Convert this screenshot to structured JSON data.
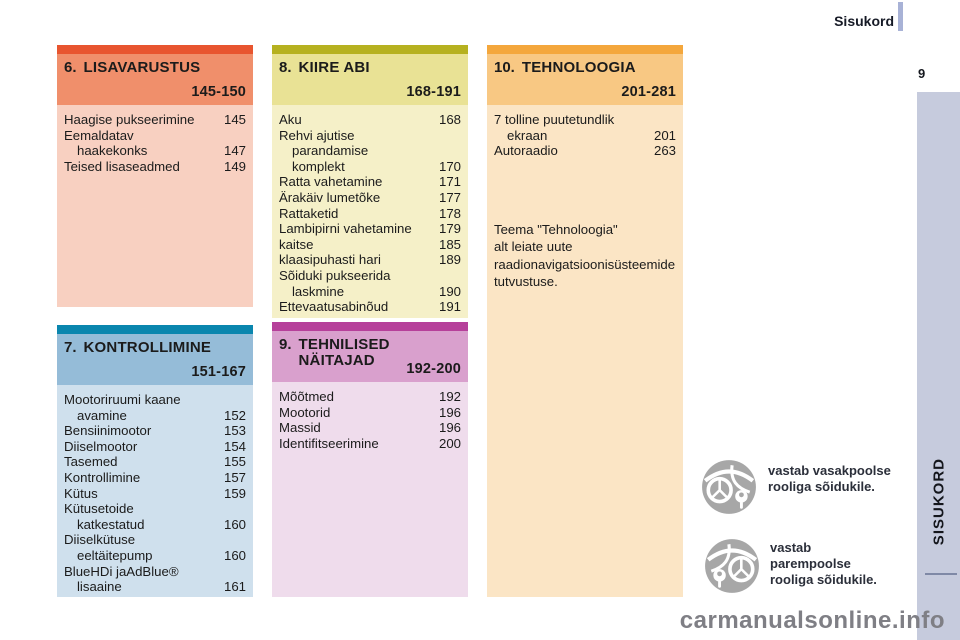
{
  "page": {
    "header_label": "Sisukord",
    "page_number": "9",
    "sidebar_label": "SISUKORD",
    "watermark": "carmanualsonline.info"
  },
  "colors": {
    "sidebar": "#c6cbdd",
    "bookmark": "#a8b2d6",
    "sidebar_underline": "#7f89a6",
    "body_text": "#1b1b1b"
  },
  "sections": [
    {
      "number": "6.",
      "title": "LISAVARUSTUS",
      "pages": "145-150",
      "colors": {
        "strip": "#e8552f",
        "band": "#f08f6b",
        "body": "#f8d0c1"
      },
      "items": [
        {
          "text": "Haagise pukseerimine",
          "page": "145"
        },
        {
          "text": "Eemaldatav"
        },
        {
          "text": "haakekonks",
          "page": "147",
          "indent": true
        },
        {
          "text": "Teised lisaseadmed",
          "page": "149"
        }
      ]
    },
    {
      "number": "8.",
      "title": "KIIRE ABI",
      "pages": "168-191",
      "colors": {
        "strip": "#b6b120",
        "band": "#e9e295",
        "body": "#f5f0c8"
      },
      "items": [
        {
          "text": "Aku",
          "page": "168"
        },
        {
          "text": "Rehvi ajutise"
        },
        {
          "text": "parandamise",
          "indent": true
        },
        {
          "text": "komplekt",
          "page": "170",
          "indent": true
        },
        {
          "text": "Ratta vahetamine",
          "page": "171"
        },
        {
          "text": "Ärakäiv lumetõke",
          "page": "177"
        },
        {
          "text": "Rattaketid",
          "page": "178"
        },
        {
          "text": "Lambipirni vahetamine",
          "page": "179"
        },
        {
          "text": "kaitse",
          "page": "185"
        },
        {
          "text": "klaasipuhasti hari",
          "page": "189"
        },
        {
          "text": "Sõiduki pukseerida"
        },
        {
          "text": "laskmine",
          "page": "190",
          "indent": true
        },
        {
          "text": "Ettevaatusabinõud",
          "page": "191"
        }
      ]
    },
    {
      "number": "10.",
      "title": "TEHNOLOOGIA",
      "pages": "201-281",
      "colors": {
        "strip": "#f4a73c",
        "band": "#f8c883",
        "body": "#fbe5c5"
      },
      "items": [
        {
          "text": "7 tolline puutetundlik"
        },
        {
          "text": "ekraan",
          "page": "201",
          "indent": true
        },
        {
          "text": "Autoraadio",
          "page": "263"
        }
      ],
      "note": "Teema \"Tehnoloogia\"\nalt leiate uute\nraadionavigatsioonisüsteemide\ntutvustuse."
    },
    {
      "number": "7.",
      "title": "KONTROLLIMINE",
      "pages": "151-167",
      "colors": {
        "strip": "#0a86ae",
        "band": "#95bcd8",
        "body": "#cfe0ed"
      },
      "items": [
        {
          "text": "Mootoriruumi kaane"
        },
        {
          "text": "avamine",
          "page": "152",
          "indent": true
        },
        {
          "text": "Bensiinimootor",
          "page": "153"
        },
        {
          "text": "Diiselmootor",
          "page": "154"
        },
        {
          "text": "Tasemed",
          "page": "155"
        },
        {
          "text": "Kontrollimine",
          "page": "157"
        },
        {
          "text": "Kütus",
          "page": "159"
        },
        {
          "text": "Kütusetoide"
        },
        {
          "text": "katkestatud",
          "page": "160",
          "indent": true
        },
        {
          "text": "Diiselkütuse"
        },
        {
          "text": "eeltäitepump",
          "page": "160",
          "indent": true
        },
        {
          "text": "BlueHDi jaAdBlue®"
        },
        {
          "text": "lisaaine",
          "page": "161",
          "indent": true
        }
      ]
    },
    {
      "number": "9.",
      "title": "TEHNILISED\nNÄITAJAD",
      "pages": "192-200",
      "colors": {
        "strip": "#b6409a",
        "band": "#d9a0cd",
        "body": "#efdcec"
      },
      "items": [
        {
          "text": "Mõõtmed",
          "page": "192"
        },
        {
          "text": "Mootorid",
          "page": "196"
        },
        {
          "text": "Massid",
          "page": "196"
        },
        {
          "text": "Identifitseerimine",
          "page": "200"
        }
      ]
    }
  ],
  "legend": [
    {
      "icon": "left-hand-drive-icon",
      "text": "vastab vasakpoolse\nrooliga sõidukile."
    },
    {
      "icon": "right-hand-drive-icon",
      "text": "vastab\nparempoolse\nrooliga sõidukile."
    }
  ]
}
